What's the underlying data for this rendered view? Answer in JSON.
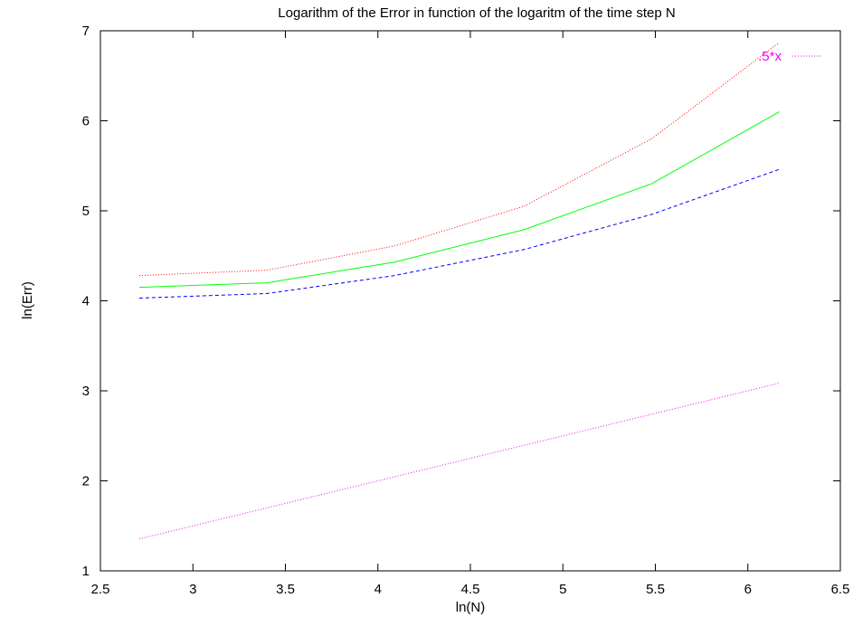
{
  "chart_data": {
    "type": "line",
    "title": "Logarithm of the Error in function of the logaritm of the time step N",
    "xlabel": "ln(N)",
    "ylabel": "ln(Err)",
    "xlim": [
      2.5,
      6.5
    ],
    "ylim": [
      1,
      7
    ],
    "xticks": [
      "2.5",
      "3",
      "3.5",
      "4",
      "4.5",
      "5",
      "5.5",
      "6",
      "6.5"
    ],
    "yticks": [
      "1",
      "2",
      "3",
      "4",
      "5",
      "6",
      "7"
    ],
    "grid": false,
    "legend_position": "top-right",
    "x": [
      2.71,
      3.4,
      4.09,
      4.79,
      5.48,
      6.17
    ],
    "series": [
      {
        "color": "#ff0000",
        "style": "dotted",
        "values": [
          4.28,
          4.34,
          4.61,
          5.05,
          5.8,
          6.87
        ]
      },
      {
        "color": "#00ff00",
        "style": "solid",
        "values": [
          4.15,
          4.2,
          4.43,
          4.79,
          5.3,
          6.1
        ]
      },
      {
        "color": "#0000ff",
        "style": "dashed",
        "values": [
          4.03,
          4.08,
          4.28,
          4.57,
          4.96,
          5.46
        ]
      },
      {
        "name": ".5*x",
        "color": "#ff00ff",
        "style": "dotted",
        "values": [
          1.355,
          1.7,
          2.045,
          2.395,
          2.74,
          3.085
        ]
      }
    ]
  }
}
